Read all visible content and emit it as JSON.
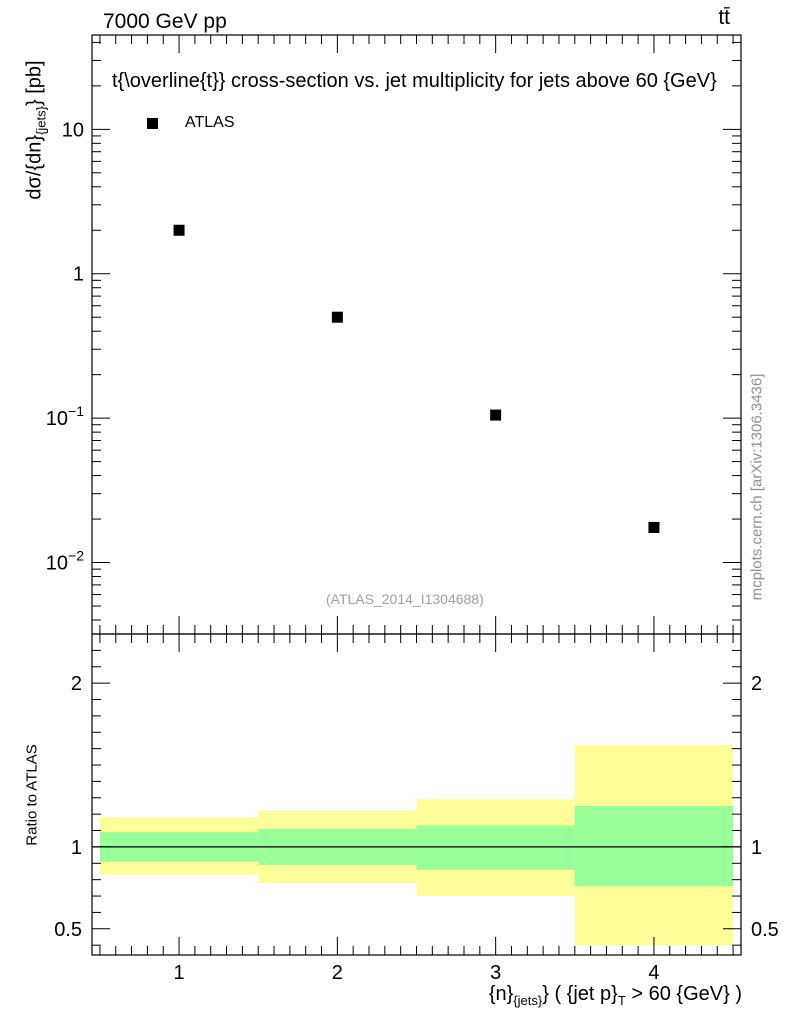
{
  "header": {
    "left": "7000 GeV pp",
    "right": "tt̄"
  },
  "side_label": "mcplots.cern.ch [arXiv:1306.3436]",
  "watermark": "(ATLAS_2014_I1304688)",
  "chart_data": [
    {
      "type": "scatter",
      "title": "t{\\overline{t}} cross-section vs. jet multiplicity for jets above 60 {GeV}",
      "ylabel": {
        "main": "dσ/{dn}",
        "sub": "{jets}",
        "unit": "} [pb]"
      },
      "yscale": "log",
      "xlim": [
        0.45,
        4.55
      ],
      "ylim": [
        0.0032,
        45
      ],
      "yticks": [
        {
          "value": 0.01,
          "base": "10",
          "exp": "−2"
        },
        {
          "value": 0.1,
          "base": "10",
          "exp": "−1"
        },
        {
          "value": 1,
          "base": "1",
          "exp": ""
        },
        {
          "value": 10,
          "base": "10",
          "exp": ""
        }
      ],
      "legend": {
        "position": "top-left"
      },
      "series": [
        {
          "name": "ATLAS",
          "x": [
            1,
            2,
            3,
            4
          ],
          "y": [
            2.0,
            0.5,
            0.105,
            0.0175
          ]
        }
      ]
    },
    {
      "type": "area",
      "ylabel": "Ratio to ATLAS",
      "xlabel": {
        "part1": "{n}",
        "sub1": "{jets}",
        "part2": "} ( {jet p}",
        "sub2": "T",
        "part3": " > 60 {GeV} )"
      },
      "xlim": [
        0.45,
        4.55
      ],
      "ylim": [
        0.34,
        2.3
      ],
      "xticks": [
        "1",
        "2",
        "3",
        "4"
      ],
      "yticks": [
        "0.5",
        "1",
        "2"
      ],
      "reference_line": 1,
      "bands": {
        "bins": [
          [
            0.5,
            1.5
          ],
          [
            1.5,
            2.5
          ],
          [
            2.5,
            3.5
          ],
          [
            3.5,
            4.5
          ]
        ],
        "outer": {
          "color": "#ffff99",
          "low": [
            0.83,
            0.78,
            0.7,
            0.4
          ],
          "high": [
            1.18,
            1.22,
            1.29,
            1.62
          ]
        },
        "inner": {
          "color": "#99ff99",
          "low": [
            0.91,
            0.89,
            0.86,
            0.76
          ],
          "high": [
            1.09,
            1.11,
            1.13,
            1.25
          ]
        }
      }
    }
  ]
}
